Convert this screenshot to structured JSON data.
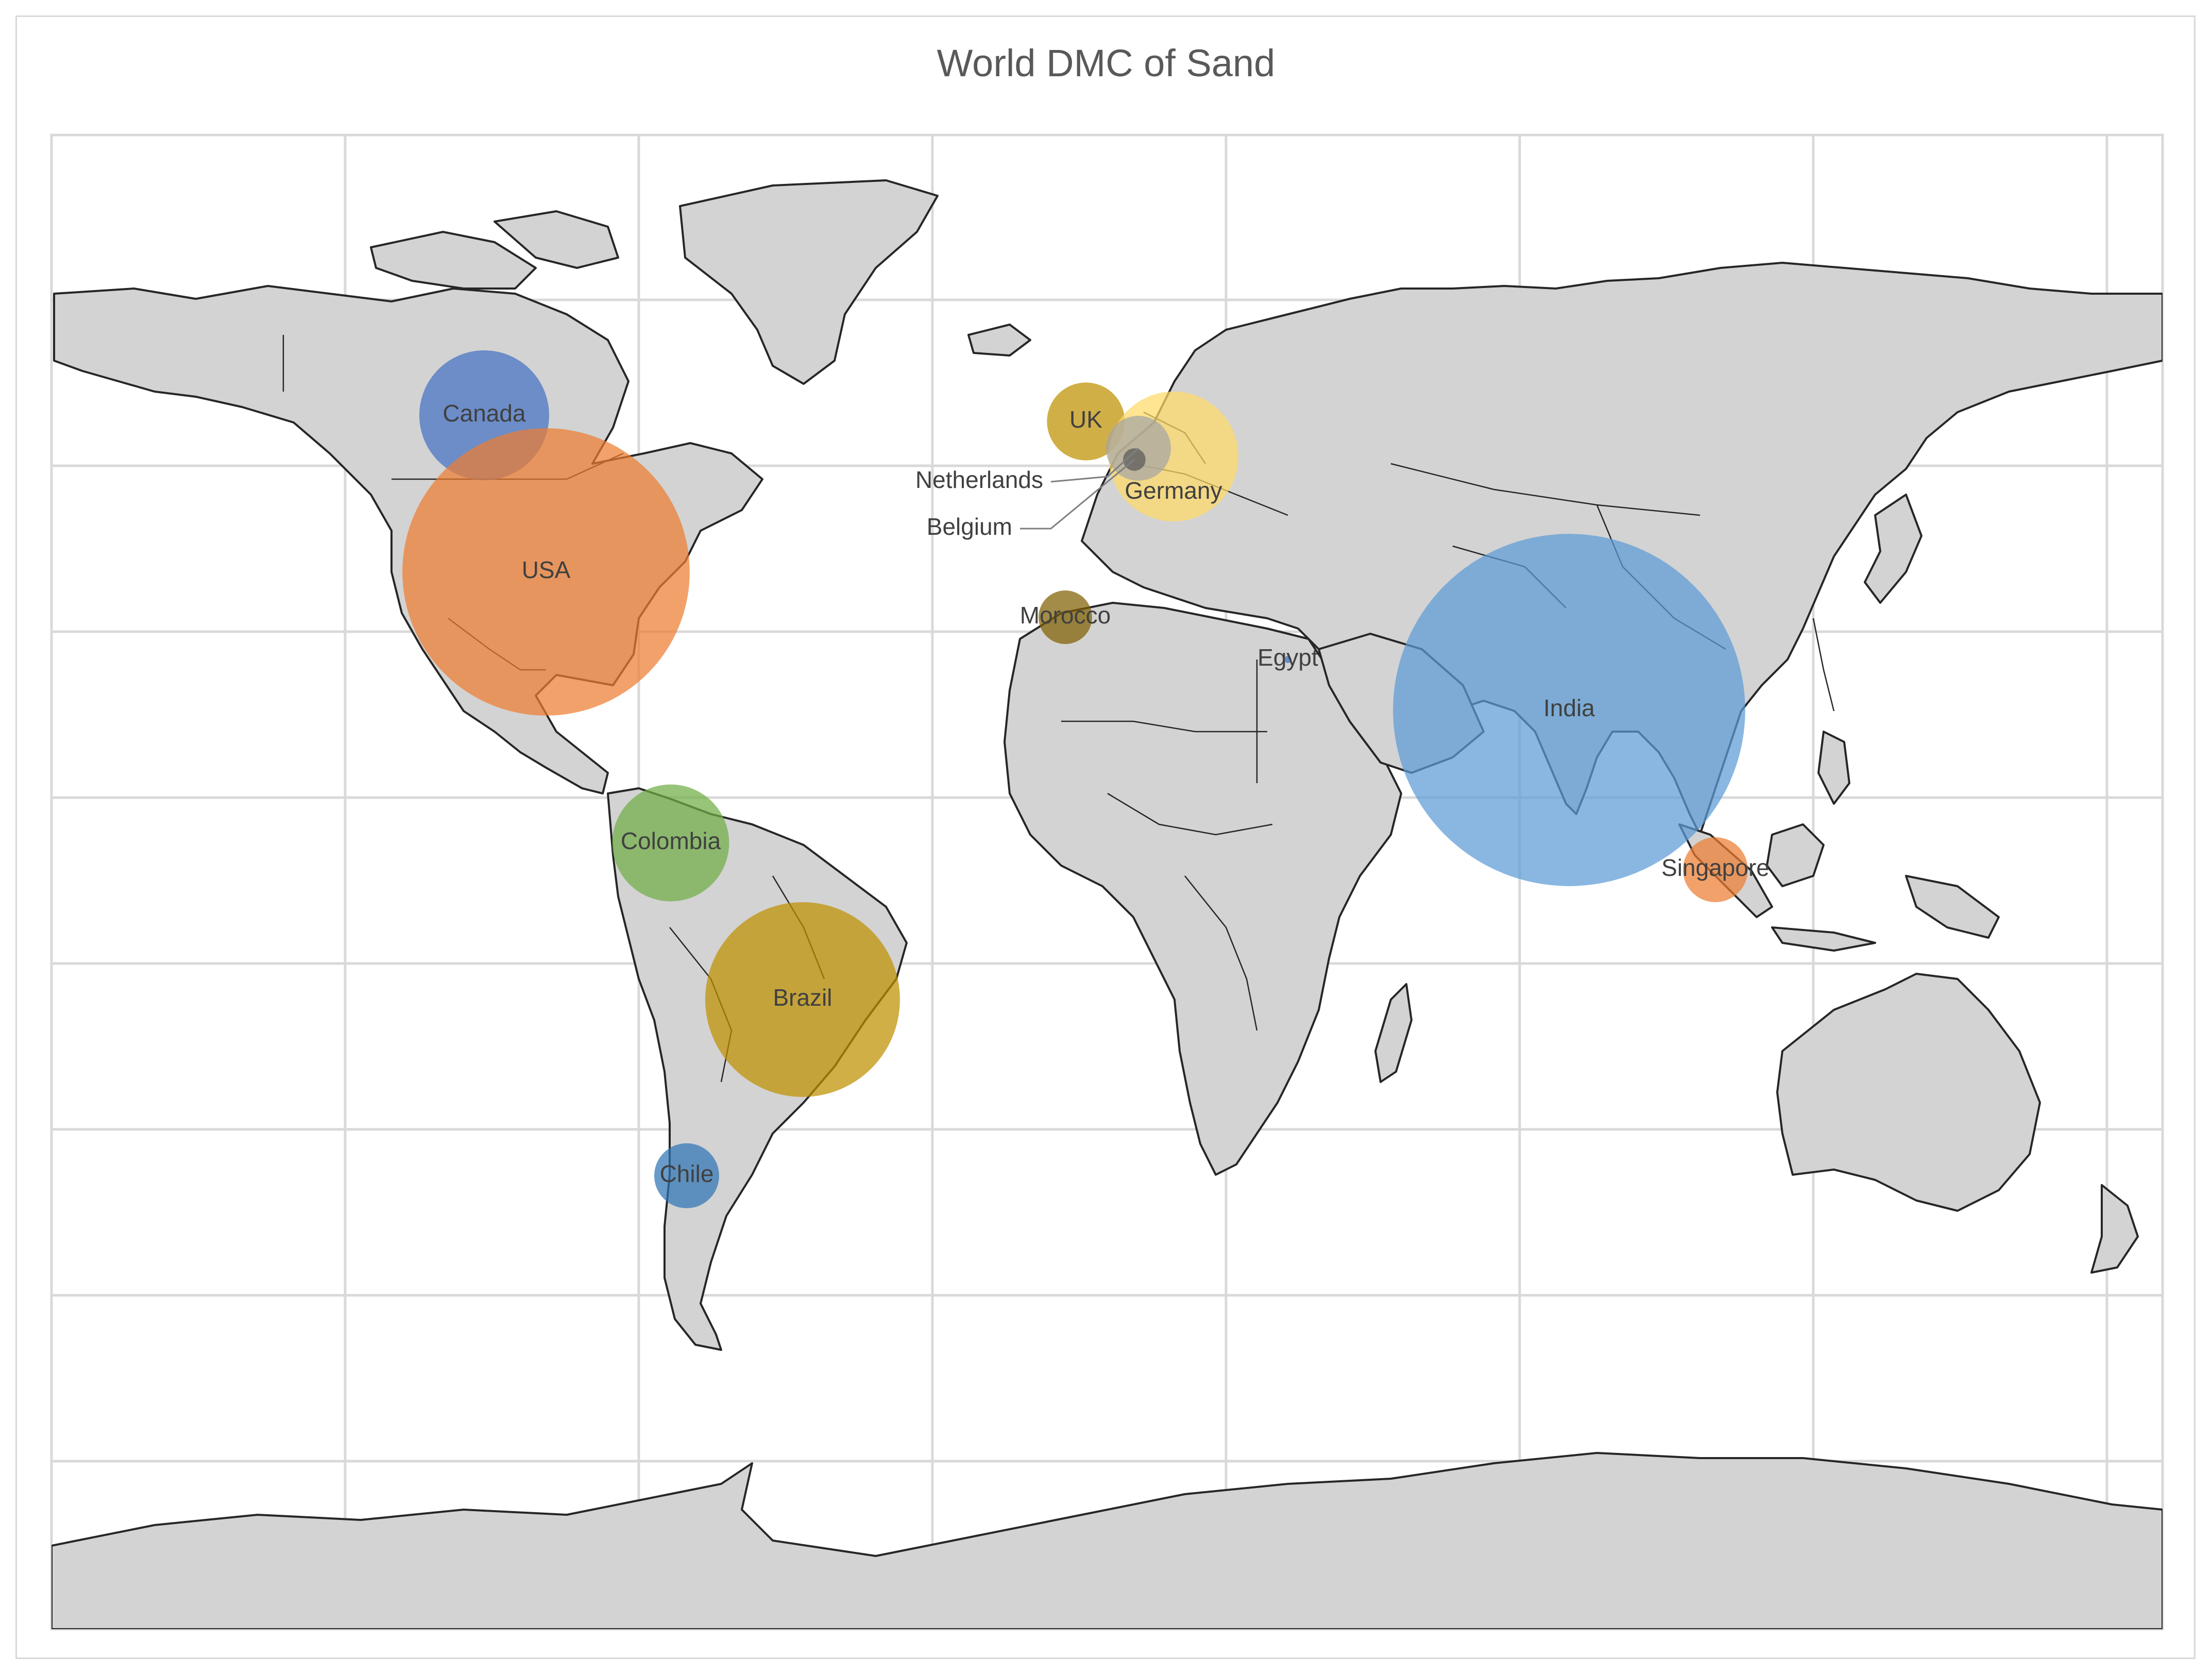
{
  "chart_data": {
    "type": "bubble-map",
    "title": "World DMC of Sand",
    "grid": true,
    "points": [
      {
        "name": "Canada",
        "color": "#4472c4",
        "size": 1.0
      },
      {
        "name": "USA",
        "color": "#ed7d31",
        "size": 4.9
      },
      {
        "name": "UK",
        "color": "#bf9000",
        "size": 0.36
      },
      {
        "name": "Germany",
        "color": "#ffd966",
        "size": 1.0
      },
      {
        "name": "Netherlands",
        "color": "#a5a5a5",
        "size": 0.25
      },
      {
        "name": "Belgium",
        "color": "#595959",
        "size": 0.03
      },
      {
        "name": "Morocco",
        "color": "#7f6000",
        "size": 0.17
      },
      {
        "name": "Egypt",
        "color": "#4472c4",
        "size": 0.003
      },
      {
        "name": "India",
        "color": "#5b9bd5",
        "size": 7.36
      },
      {
        "name": "Singapore",
        "color": "#ed7d31",
        "size": 0.25
      },
      {
        "name": "Colombia",
        "color": "#70ad47",
        "size": 0.81
      },
      {
        "name": "Brazil",
        "color": "#bf9000",
        "size": 2.25
      },
      {
        "name": "Chile",
        "color": "#2e75b6",
        "size": 0.25
      }
    ]
  }
}
